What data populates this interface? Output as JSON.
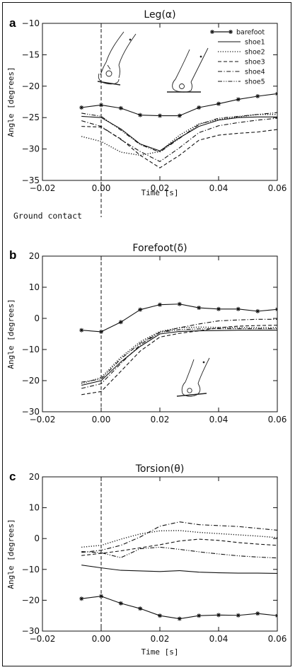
{
  "chart_data": [
    {
      "type": "line",
      "panel_letter": "a",
      "title": "Leg(α)",
      "xlabel": "Time [s]",
      "ylabel": "Angle [degrees]",
      "xlim": [
        -0.02,
        0.06
      ],
      "ylim": [
        -35,
        -10
      ],
      "xticks": [
        -0.02,
        0.0,
        0.02,
        0.04,
        0.06
      ],
      "xtick_labels": [
        "−0.02",
        "0.00",
        "0.02",
        "0.04",
        "0.06"
      ],
      "yticks": [
        -10,
        -15,
        -20,
        -25,
        -30,
        -35
      ],
      "ytick_labels": [
        "−10",
        "−15",
        "−20",
        "−25",
        "−30",
        "−35"
      ],
      "vline_x": 0.0,
      "annotation": "Ground contact",
      "legend_position": "top-right",
      "series": [
        {
          "name": "barefoot",
          "style": "solid-star",
          "x": [
            -0.0067,
            0.0,
            0.0067,
            0.0133,
            0.02,
            0.0267,
            0.0333,
            0.04,
            0.0467,
            0.0533,
            0.06
          ],
          "y": [
            -23.4,
            -23.0,
            -23.5,
            -24.6,
            -24.7,
            -24.7,
            -23.4,
            -22.8,
            -22.1,
            -21.6,
            -21.2
          ]
        },
        {
          "name": "shoe1",
          "style": "solid",
          "x": [
            -0.0067,
            0.0,
            0.0067,
            0.0133,
            0.02,
            0.0267,
            0.0333,
            0.04,
            0.0467,
            0.0533,
            0.06
          ],
          "y": [
            -24.8,
            -25.0,
            -26.8,
            -29.2,
            -30.3,
            -28.2,
            -26.4,
            -25.4,
            -25.0,
            -24.9,
            -24.9
          ]
        },
        {
          "name": "shoe2",
          "style": "dotted",
          "x": [
            -0.0067,
            0.0,
            0.0067,
            0.0133,
            0.02,
            0.0267,
            0.0333,
            0.04,
            0.0467,
            0.0533,
            0.06
          ],
          "y": [
            -28.0,
            -28.8,
            -30.5,
            -31.0,
            -30.4,
            -27.8,
            -26.0,
            -25.3,
            -24.9,
            -24.5,
            -24.5
          ]
        },
        {
          "name": "shoe3",
          "style": "dashed",
          "x": [
            -0.0067,
            0.0,
            0.0067,
            0.0133,
            0.02,
            0.0267,
            0.0333,
            0.04,
            0.0467,
            0.0533,
            0.06
          ],
          "y": [
            -26.4,
            -26.5,
            -28.4,
            -31.0,
            -33.0,
            -31.0,
            -28.6,
            -27.8,
            -27.5,
            -27.3,
            -26.9
          ]
        },
        {
          "name": "shoe4",
          "style": "dash-dot",
          "x": [
            -0.0067,
            0.0,
            0.0067,
            0.0133,
            0.02,
            0.0267,
            0.0333,
            0.04,
            0.0467,
            0.0533,
            0.06
          ],
          "y": [
            -25.5,
            -26.4,
            -28.5,
            -30.4,
            -32.0,
            -29.8,
            -27.4,
            -26.3,
            -25.8,
            -25.4,
            -25.1
          ]
        },
        {
          "name": "shoe5",
          "style": "dash-dot-dot",
          "x": [
            -0.0067,
            0.0,
            0.0067,
            0.0133,
            0.02,
            0.0267,
            0.0333,
            0.04,
            0.0467,
            0.0533,
            0.06
          ],
          "y": [
            -24.3,
            -24.8,
            -27.0,
            -29.3,
            -30.5,
            -28.3,
            -26.1,
            -25.1,
            -24.8,
            -24.5,
            -24.2
          ]
        }
      ]
    },
    {
      "type": "line",
      "panel_letter": "b",
      "title": "Forefoot(δ)",
      "xlabel": "Time [s]",
      "ylabel": "Angle [degrees]",
      "xlim": [
        -0.02,
        0.06
      ],
      "ylim": [
        -30,
        20
      ],
      "xticks": [
        -0.02,
        0.0,
        0.02,
        0.04,
        0.06
      ],
      "xtick_labels": [
        "−0.02",
        "0.00",
        "0.02",
        "0.04",
        "0.06"
      ],
      "yticks": [
        20,
        10,
        0,
        -10,
        -20,
        -30
      ],
      "ytick_labels": [
        "20",
        "10",
        "0",
        "−10",
        "−20",
        "−30"
      ],
      "vline_x": 0.0,
      "series": [
        {
          "name": "barefoot",
          "style": "solid-star",
          "x": [
            -0.0067,
            0.0,
            0.0067,
            0.0133,
            0.02,
            0.0267,
            0.0333,
            0.04,
            0.0467,
            0.0533,
            0.06
          ],
          "y": [
            -3.8,
            -4.3,
            -1.2,
            2.8,
            4.4,
            4.6,
            3.4,
            3.0,
            3.0,
            2.3,
            2.9
          ]
        },
        {
          "name": "shoe1",
          "style": "solid",
          "x": [
            -0.0067,
            0.0,
            0.0067,
            0.0133,
            0.02,
            0.0267,
            0.0333,
            0.04,
            0.0467,
            0.0533,
            0.06
          ],
          "y": [
            -21.5,
            -20.0,
            -14.0,
            -9.0,
            -5.0,
            -4.2,
            -4.0,
            -3.9,
            -3.8,
            -3.8,
            -3.8
          ]
        },
        {
          "name": "shoe2",
          "style": "dotted",
          "x": [
            -0.0067,
            0.0,
            0.0067,
            0.0133,
            0.02,
            0.0267,
            0.0333,
            0.04,
            0.0467,
            0.0533,
            0.06
          ],
          "y": [
            -21.0,
            -19.0,
            -12.5,
            -7.5,
            -4.2,
            -3.0,
            -2.8,
            -2.9,
            -3.0,
            -3.0,
            -3.0
          ]
        },
        {
          "name": "shoe3",
          "style": "dashed",
          "x": [
            -0.0067,
            0.0,
            0.0067,
            0.0133,
            0.02,
            0.0267,
            0.0333,
            0.04,
            0.0467,
            0.0533,
            0.06
          ],
          "y": [
            -24.5,
            -23.5,
            -17.0,
            -10.5,
            -6.0,
            -4.8,
            -4.0,
            -3.0,
            -2.5,
            -2.3,
            -2.2
          ]
        },
        {
          "name": "shoe4",
          "style": "dash-dot",
          "x": [
            -0.0067,
            0.0,
            0.0067,
            0.0133,
            0.02,
            0.0267,
            0.0333,
            0.04,
            0.0467,
            0.0533,
            0.06
          ],
          "y": [
            -22.5,
            -21.0,
            -14.5,
            -8.5,
            -4.5,
            -3.0,
            -1.8,
            -0.8,
            -0.5,
            -0.3,
            -0.3
          ]
        },
        {
          "name": "shoe5",
          "style": "dash-dot-dot",
          "x": [
            -0.0067,
            0.0,
            0.0067,
            0.0133,
            0.02,
            0.0267,
            0.0333,
            0.04,
            0.0467,
            0.0533,
            0.06
          ],
          "y": [
            -20.5,
            -19.5,
            -13.0,
            -8.0,
            -4.5,
            -3.6,
            -3.4,
            -3.3,
            -3.3,
            -3.3,
            -3.3
          ]
        }
      ]
    },
    {
      "type": "line",
      "panel_letter": "c",
      "title": "Torsion(θ)",
      "xlabel": "Time [s]",
      "ylabel": "Angle [degrees]",
      "xlim": [
        -0.02,
        0.06
      ],
      "ylim": [
        -30,
        20
      ],
      "xticks": [
        -0.02,
        0.0,
        0.02,
        0.04,
        0.06
      ],
      "xtick_labels": [
        "−0.02",
        "0.00",
        "0.02",
        "0.04",
        "0.06"
      ],
      "yticks": [
        20,
        10,
        0,
        -10,
        -20,
        -30
      ],
      "ytick_labels": [
        "20",
        "10",
        "0",
        "−10",
        "−20",
        "−30"
      ],
      "vline_x": 0.0,
      "series": [
        {
          "name": "barefoot",
          "style": "solid-star",
          "x": [
            -0.0067,
            0.0,
            0.0067,
            0.0133,
            0.02,
            0.0267,
            0.0333,
            0.04,
            0.0467,
            0.0533,
            0.06
          ],
          "y": [
            -19.5,
            -18.7,
            -21.0,
            -22.7,
            -25.0,
            -26.0,
            -25.0,
            -24.8,
            -24.9,
            -24.3,
            -25.0
          ]
        },
        {
          "name": "shoe1",
          "style": "solid",
          "x": [
            -0.0067,
            0.0,
            0.0067,
            0.0133,
            0.02,
            0.0267,
            0.0333,
            0.04,
            0.0467,
            0.0533,
            0.06
          ],
          "y": [
            -8.6,
            -9.5,
            -10.3,
            -10.5,
            -10.7,
            -10.4,
            -10.9,
            -11.1,
            -11.2,
            -11.2,
            -11.3
          ]
        },
        {
          "name": "shoe2",
          "style": "dotted",
          "x": [
            -0.0067,
            0.0,
            0.0067,
            0.0133,
            0.02,
            0.0267,
            0.0333,
            0.04,
            0.0467,
            0.0533,
            0.06
          ],
          "y": [
            -2.8,
            -2.2,
            -0.2,
            1.5,
            2.5,
            2.6,
            2.0,
            1.6,
            1.2,
            0.8,
            0.3
          ]
        },
        {
          "name": "shoe3",
          "style": "dashed",
          "x": [
            -0.0067,
            0.0,
            0.0067,
            0.0133,
            0.02,
            0.0267,
            0.0333,
            0.04,
            0.0467,
            0.0533,
            0.06
          ],
          "y": [
            -5.5,
            -4.8,
            -4.0,
            -3.0,
            -2.0,
            -0.8,
            -0.2,
            -0.6,
            -1.3,
            -1.8,
            -2.2
          ]
        },
        {
          "name": "shoe4",
          "style": "dash-dot",
          "x": [
            -0.0067,
            0.0,
            0.0067,
            0.0133,
            0.02,
            0.0267,
            0.0333,
            0.04,
            0.0467,
            0.0533,
            0.06
          ],
          "y": [
            -4.5,
            -3.8,
            -2.2,
            0.5,
            4.0,
            5.4,
            4.5,
            4.2,
            3.9,
            3.3,
            2.7
          ]
        },
        {
          "name": "shoe5",
          "style": "dash-dot-dot",
          "x": [
            -0.0067,
            0.0,
            0.0067,
            0.0133,
            0.02,
            0.0267,
            0.0333,
            0.04,
            0.0467,
            0.0533,
            0.06
          ],
          "y": [
            -4.2,
            -4.6,
            -6.2,
            -3.3,
            -2.8,
            -3.5,
            -4.3,
            -5.0,
            -5.6,
            -6.0,
            -6.3
          ]
        }
      ]
    }
  ]
}
